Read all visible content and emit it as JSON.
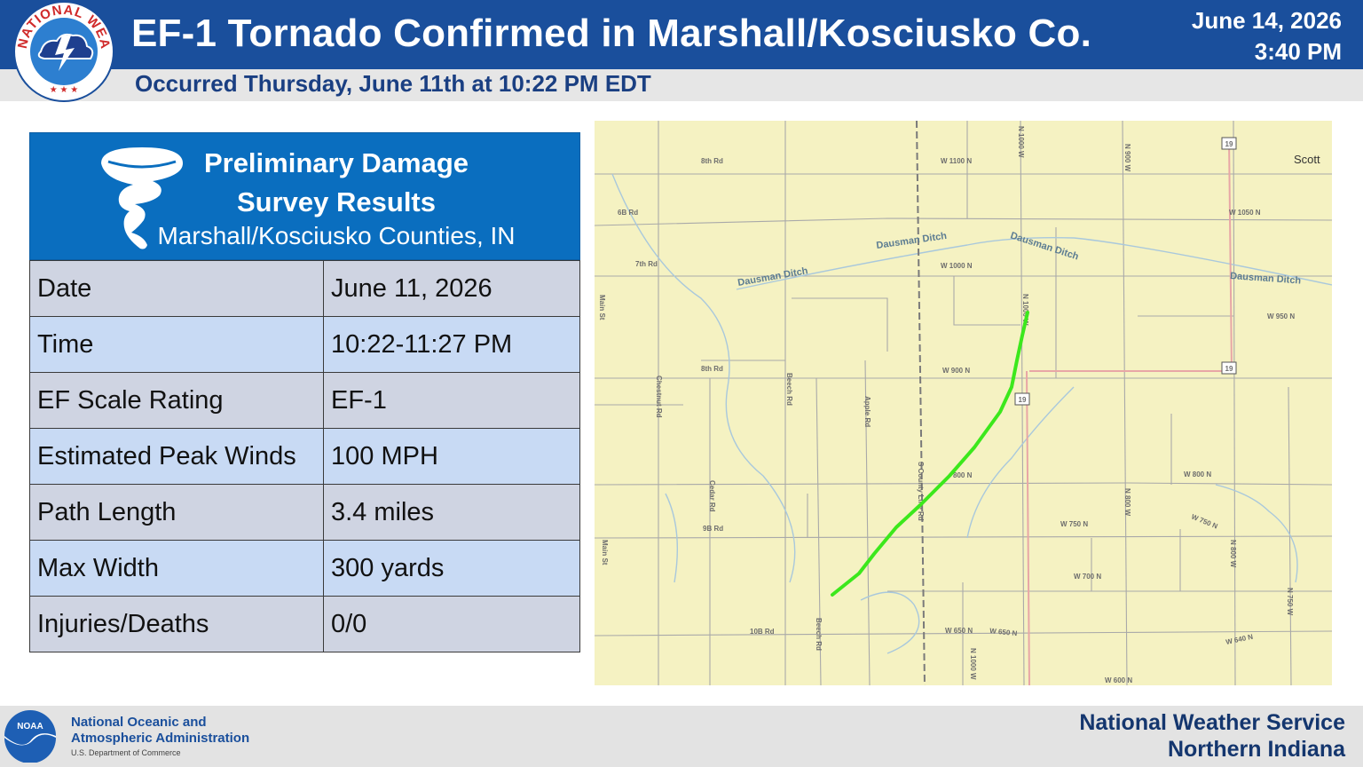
{
  "header": {
    "title": "EF-1 Tornado Confirmed in Marshall/Kosciusko Co.",
    "date": "June 14, 2026",
    "time": "3:40 PM",
    "subtitle": "Occurred Thursday, June 11th at 10:22 PM EDT",
    "logo_ring_text": "NATIONAL WEATHER SERVICE"
  },
  "card": {
    "title_line1": "Preliminary Damage",
    "title_line2": "Survey Results",
    "location": "Marshall/Kosciusko Counties, IN",
    "rows": [
      {
        "label": "Date",
        "value": "June 11, 2026"
      },
      {
        "label": "Time",
        "value": "10:22-11:27 PM"
      },
      {
        "label": "EF Scale Rating",
        "value": "EF-1"
      },
      {
        "label": "Estimated Peak Winds",
        "value": "100 MPH"
      },
      {
        "label": "Path Length",
        "value": "3.4 miles"
      },
      {
        "label": "Max Width",
        "value": "300 yards"
      },
      {
        "label": "Injuries/Deaths",
        "value": "0/0"
      }
    ]
  },
  "map": {
    "labels": {
      "r8th": "8th Rd",
      "r6b": "6B Rd",
      "r7th": "7th Rd",
      "r8th_b": "8th Rd",
      "r9b": "9B Rd",
      "r10b": "10B Rd",
      "w1100n": "W 1100 N",
      "w1000n": "W 1000 N",
      "w1050n": "W 1050 N",
      "w950n": "W 950 N",
      "w900n": "W 900 N",
      "w800n": "W 800 N",
      "w800n_b": "800 N",
      "w750n": "W 750 N",
      "w750n_b": "W 750 N",
      "w700n": "W 700 N",
      "w650n": "W 650 N",
      "w650n_b": "W 650 N",
      "w640n": "W 640 N",
      "w600n": "W 600 N",
      "n1000w": "N 1000 W",
      "n1000w_b": "N 1000 W",
      "n1000w_c": "N 1000 W",
      "n900w": "N 900 W",
      "n800w": "N 800 W",
      "n800w_b": "N 800 W",
      "n750w": "N 750 W",
      "main1": "Main St",
      "main2": "Main St",
      "chestnut": "Chestnut Rd",
      "beech": "Beech Rd",
      "beech2": "Beech Rd",
      "apple": "Apple Rd",
      "cedar": "Cedar Rd",
      "county": "S County Line Rd",
      "ditch1": "Dausman Ditch",
      "ditch2": "Dausman Ditch",
      "ditch3": "Dausman Ditch",
      "ditch4": "Dausman Ditch",
      "scott": "Scott",
      "hw1": "19",
      "hw2": "19",
      "hw3": "19"
    }
  },
  "footer": {
    "noaa_line1": "National Oceanic and",
    "noaa_line2": "Atmospheric Administration",
    "noaa_dept": "U.S. Department of Commerce",
    "noaa_badge": "NOAA",
    "nws_line1": "National Weather Service",
    "nws_line2": "Northern Indiana"
  },
  "colors": {
    "header_blue": "#1a4f9c",
    "card_blue": "#0a6ebf",
    "track_green": "#3ce81c",
    "map_bg": "#f5f2c2"
  },
  "icons": {
    "nws": "nws-logo-icon",
    "tornado": "tornado-icon",
    "noaa": "noaa-logo-icon"
  }
}
